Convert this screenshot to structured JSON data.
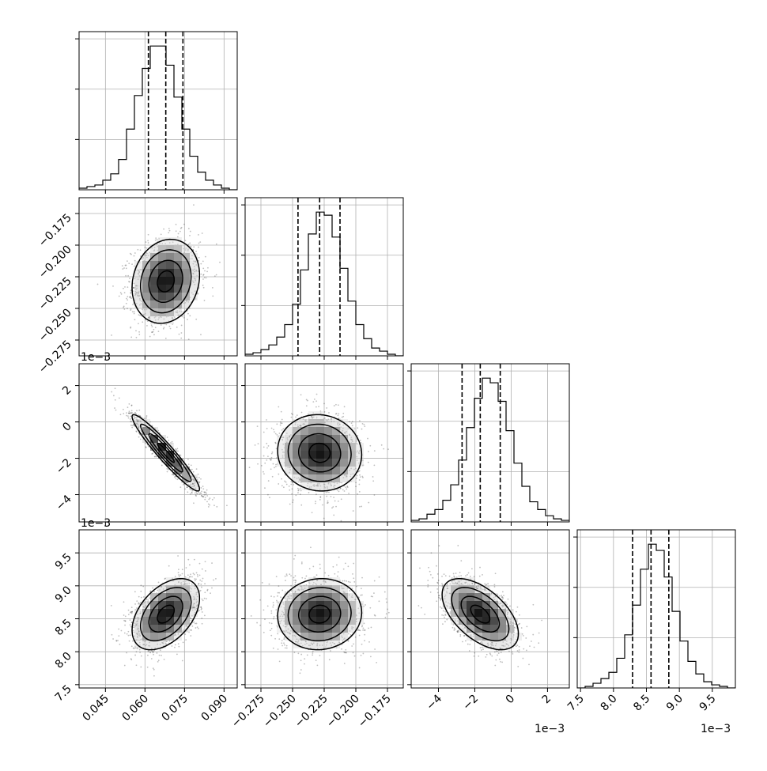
{
  "chart_data": {
    "type": "corner",
    "grid": true,
    "parameters": [
      {
        "range": [
          0.035,
          0.095
        ],
        "ticks": [
          0.045,
          0.06,
          0.075,
          0.09
        ],
        "tick_labels": [
          "0.045",
          "0.060",
          "0.075",
          "0.090"
        ],
        "quantiles": [
          0.0613,
          0.0679,
          0.0744
        ],
        "offset_label": ""
      },
      {
        "range": [
          -0.2875,
          -0.1625
        ],
        "ticks": [
          -0.275,
          -0.25,
          -0.225,
          -0.2,
          -0.175
        ],
        "tick_labels": [
          "−0.275",
          "−0.250",
          "−0.225",
          "−0.200",
          "−0.175"
        ],
        "quantiles": [
          -0.2457,
          -0.2286,
          -0.2125
        ],
        "offset_label": ""
      },
      {
        "range": [
          -5.5,
          3.2
        ],
        "ticks": [
          -4,
          -2,
          0,
          2
        ],
        "tick_labels": [
          "−4",
          "−2",
          "0",
          "2"
        ],
        "quantiles": [
          -2.7,
          -1.7,
          -0.6
        ],
        "offset_label": "1e−3"
      },
      {
        "range": [
          7.45,
          9.85
        ],
        "ticks": [
          7.5,
          8.0,
          8.5,
          9.0,
          9.5
        ],
        "tick_labels": [
          "7.5",
          "8.0",
          "8.5",
          "9.0",
          "9.5"
        ],
        "quantiles": [
          8.29,
          8.57,
          8.84
        ],
        "offset_label": "1e−3"
      }
    ],
    "histograms": [
      {
        "param": 0,
        "bins": [
          0.035,
          0.095
        ],
        "counts": [
          1,
          2,
          3,
          6,
          10,
          19,
          38,
          59,
          76,
          90,
          90,
          78,
          58,
          38,
          21,
          11,
          6,
          3,
          1,
          0
        ]
      },
      {
        "param": 1,
        "bins": [
          -0.2875,
          -0.1625
        ],
        "counts": [
          1,
          2,
          4,
          7,
          12,
          20,
          33,
          55,
          78,
          92,
          90,
          76,
          56,
          35,
          20,
          11,
          5,
          3,
          1,
          0
        ]
      },
      {
        "param": 2,
        "bins": [
          -5.5,
          3.2
        ],
        "counts": [
          1,
          2,
          5,
          8,
          14,
          24,
          40,
          61,
          80,
          93,
          90,
          78,
          59,
          38,
          23,
          13,
          8,
          4,
          2,
          1
        ]
      },
      {
        "param": 3,
        "bins": [
          7.45,
          9.85
        ],
        "counts": [
          0,
          1,
          3,
          6,
          10,
          19,
          34,
          53,
          76,
          92,
          88,
          71,
          49,
          30,
          17,
          9,
          4,
          2,
          1,
          0
        ]
      }
    ],
    "pair_distributions": [
      {
        "x_param": 0,
        "y_param": 1,
        "center": [
          0.0679,
          -0.2286
        ],
        "sd": [
          0.0064,
          0.0166
        ],
        "corr": 0.15
      },
      {
        "x_param": 0,
        "y_param": 2,
        "center": [
          0.0679,
          -1.7
        ],
        "sd": [
          0.0064,
          1.05
        ],
        "corr": -0.95
      },
      {
        "x_param": 1,
        "y_param": 2,
        "center": [
          -0.2286,
          -1.7
        ],
        "sd": [
          0.0166,
          1.05
        ],
        "corr": -0.05
      },
      {
        "x_param": 0,
        "y_param": 3,
        "center": [
          0.0679,
          8.57
        ],
        "sd": [
          0.0064,
          0.27
        ],
        "corr": 0.45
      },
      {
        "x_param": 1,
        "y_param": 3,
        "center": [
          -0.2286,
          8.57
        ],
        "sd": [
          0.0166,
          0.27
        ],
        "corr": 0.05
      },
      {
        "x_param": 2,
        "y_param": 3,
        "center": [
          -1.7,
          8.57
        ],
        "sd": [
          1.05,
          0.27
        ],
        "corr": -0.55
      }
    ]
  }
}
